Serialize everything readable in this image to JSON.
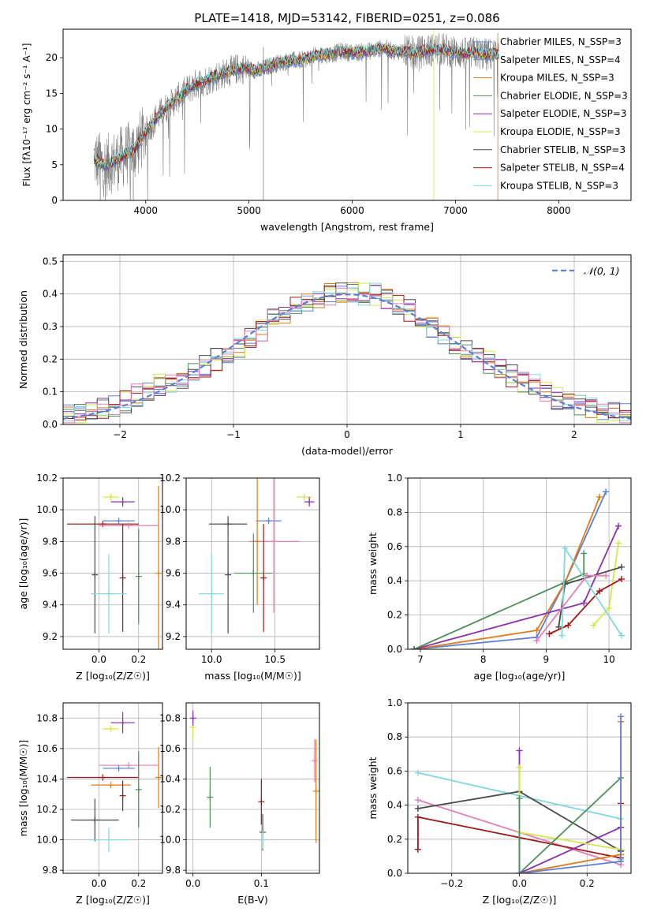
{
  "colors": {
    "chabrier_miles": "#5B7FD6",
    "salpeter_miles": "#6A8FD0",
    "kroupa_miles": "#E07B1C",
    "chabrier_elodie": "#4E8F5A",
    "salpeter_elodie": "#8E2FB0",
    "kroupa_elodie": "#D4E84A",
    "chabrier_stelib": "#4A4A4A",
    "salpeter_stelib": "#A01818",
    "kroupa_stelib": "#80D8DC",
    "pink": "#E57FB8",
    "gauss": "#5B7FD6",
    "grid": "#b0b0b0"
  },
  "chart_data": [
    {
      "type": "line",
      "title": "PLATE=1418, MJD=53142, FIBERID=0251, z=0.086",
      "xlabel": "wavelength [Angstrom, rest frame]",
      "ylabel": "Flux [fλ10⁻¹⁷ erg cm⁻² s⁻¹ A⁻¹]",
      "xlim": [
        3200,
        8700
      ],
      "ylim": [
        0,
        24
      ],
      "xticks": [
        "4000",
        "5000",
        "6000",
        "7000",
        "8000"
      ],
      "yticks": [
        "0",
        "5",
        "10",
        "15",
        "20"
      ],
      "legend_placement": "upper right",
      "legend": [
        "Chabrier MILES, N_SSP=3",
        "Salpeter MILES, N_SSP=4",
        "Kroupa MILES, N_SSP=3",
        "Chabrier ELODIE, N_SSP=3",
        "Salpeter ELODIE, N_SSP=3",
        "Kroupa ELODIE, N_SSP=3",
        "Chabrier STELIB, N_SSP=3",
        "Salpeter STELIB, N_SSP=4",
        "Kroupa STELIB, N_SSP=3"
      ],
      "continuum": {
        "x": [
          3500,
          3600,
          3700,
          3800,
          3900,
          4000,
          4100,
          4200,
          4300,
          4400,
          4500,
          4600,
          4700,
          4800,
          4900,
          5000,
          5100,
          5200,
          5300,
          5400,
          5500,
          5600,
          5700,
          5800,
          5900,
          6000,
          6100,
          6200,
          6300,
          6400,
          6500,
          6600,
          6700,
          6800,
          6900,
          7000,
          7100,
          7200,
          7300,
          7400
        ],
        "y": [
          5.8,
          4.8,
          5.5,
          6.3,
          7.2,
          9.5,
          11.5,
          13.0,
          14.2,
          15.5,
          16.4,
          16.9,
          17.5,
          18.0,
          18.5,
          18.4,
          18.2,
          18.9,
          19.3,
          19.6,
          19.6,
          20.1,
          20.4,
          20.5,
          20.9,
          20.7,
          20.8,
          21.0,
          21.4,
          20.9,
          20.9,
          20.6,
          20.9,
          21.2,
          21.1,
          20.8,
          20.5,
          20.7,
          20.4,
          20.5
        ]
      }
    },
    {
      "type": "step",
      "xlabel": "(data-model)/error",
      "ylabel": "Normed distribution",
      "xlim": [
        -2.5,
        2.5
      ],
      "ylim": [
        0,
        0.52
      ],
      "xticks": [
        "−2",
        "−1",
        "0",
        "1",
        "2"
      ],
      "yticks": [
        "0.0",
        "0.1",
        "0.2",
        "0.3",
        "0.4",
        "0.5"
      ],
      "legend": [
        "𝒩(0, 1)"
      ],
      "bin_width": 0.1,
      "histogram": [
        0.03,
        0.03,
        0.04,
        0.05,
        0.06,
        0.07,
        0.09,
        0.1,
        0.12,
        0.13,
        0.14,
        0.16,
        0.18,
        0.2,
        0.22,
        0.24,
        0.27,
        0.29,
        0.32,
        0.34,
        0.36,
        0.38,
        0.39,
        0.4,
        0.4,
        0.41,
        0.4,
        0.4,
        0.38,
        0.37,
        0.35,
        0.33,
        0.3,
        0.28,
        0.25,
        0.23,
        0.21,
        0.19,
        0.17,
        0.15,
        0.13,
        0.12,
        0.1,
        0.08,
        0.07,
        0.06,
        0.05,
        0.04,
        0.04,
        0.03
      ]
    },
    {
      "type": "scatter",
      "xlabel": "Z [log₁₀(Z/Z☉)]",
      "ylabel": "age  [log₁₀(age/yr)]",
      "xlim": [
        -0.18,
        0.32
      ],
      "ylim": [
        9.12,
        10.2
      ],
      "xticks": [
        "0.0",
        "0.2"
      ],
      "yticks": [
        "9.2",
        "9.4",
        "9.6",
        "9.8",
        "10.0",
        "10.2"
      ],
      "points": [
        {
          "x": 0.3,
          "y": 9.6,
          "xerr": 0.0,
          "yerr": 0.55,
          "c": "kroupa_miles"
        },
        {
          "x": 0.06,
          "y": 10.08,
          "xerr": 0.04,
          "yerr": 0.02,
          "c": "kroupa_elodie"
        },
        {
          "x": 0.12,
          "y": 10.05,
          "xerr": 0.06,
          "yerr": 0.03,
          "c": "salpeter_elodie"
        },
        {
          "x": 0.02,
          "y": 9.91,
          "xerr": 0.18,
          "yerr": 0.0,
          "c": "salpeter_stelib"
        },
        {
          "x": 0.1,
          "y": 9.93,
          "xerr": 0.08,
          "yerr": 0.0,
          "c": "chabrier_miles"
        },
        {
          "x": 0.15,
          "y": 9.9,
          "xerr": 0.15,
          "yerr": 0.0,
          "c": "pink"
        },
        {
          "x": -0.02,
          "y": 9.59,
          "xerr": 0.0,
          "yerr": 0.37,
          "c": "chabrier_stelib"
        },
        {
          "x": 0.12,
          "y": 9.57,
          "xerr": 0.0,
          "yerr": 0.34,
          "c": "salpeter_stelib"
        },
        {
          "x": 0.2,
          "y": 9.58,
          "xerr": 0.0,
          "yerr": 0.3,
          "c": "chabrier_elodie"
        },
        {
          "x": 0.05,
          "y": 9.47,
          "xerr": 0.09,
          "yerr": 0.25,
          "c": "kroupa_stelib"
        }
      ]
    },
    {
      "type": "scatter",
      "xlabel": "mass [log₁₀(M/M☉)]",
      "ylabel": "",
      "xlim": [
        9.8,
        10.85
      ],
      "ylim": [
        9.12,
        10.2
      ],
      "xticks": [
        "10.0",
        "10.5"
      ],
      "yticks": [
        "9.2",
        "9.4",
        "9.6",
        "9.8",
        "10.0",
        "10.2"
      ],
      "points": [
        {
          "x": 10.73,
          "y": 10.08,
          "xerr": 0.06,
          "yerr": 0.02,
          "c": "kroupa_elodie"
        },
        {
          "x": 10.77,
          "y": 10.05,
          "xerr": 0.04,
          "yerr": 0.03,
          "c": "salpeter_elodie"
        },
        {
          "x": 10.13,
          "y": 9.91,
          "xerr": 0.15,
          "yerr": 0.0,
          "c": "chabrier_stelib"
        },
        {
          "x": 10.45,
          "y": 9.93,
          "xerr": 0.1,
          "yerr": 0.0,
          "c": "chabrier_miles"
        },
        {
          "x": 10.49,
          "y": 9.8,
          "xerr": 0.2,
          "yerr": 0.45,
          "c": "pink"
        },
        {
          "x": 10.36,
          "y": 9.8,
          "xerr": 0.0,
          "yerr": 0.4,
          "c": "kroupa_miles"
        },
        {
          "x": 10.33,
          "y": 9.6,
          "xerr": 0.15,
          "yerr": 0.25,
          "c": "chabrier_elodie"
        },
        {
          "x": 10.13,
          "y": 9.59,
          "xerr": 0.0,
          "yerr": 0.37,
          "c": "chabrier_stelib"
        },
        {
          "x": 10.41,
          "y": 9.57,
          "xerr": 0.0,
          "yerr": 0.34,
          "c": "salpeter_stelib"
        },
        {
          "x": 10.0,
          "y": 9.47,
          "xerr": 0.1,
          "yerr": 0.25,
          "c": "kroupa_stelib"
        }
      ]
    },
    {
      "type": "line",
      "xlabel": "age  [log₁₀(age/yr)]",
      "ylabel": "mass weight",
      "xlim": [
        6.8,
        10.35
      ],
      "ylim": [
        0,
        1
      ],
      "xticks": [
        "7",
        "8",
        "9",
        "10"
      ],
      "yticks": [
        "0.0",
        "0.2",
        "0.4",
        "0.6",
        "0.8",
        "1.0"
      ],
      "series": [
        {
          "c": "chabrier_miles",
          "x": [
            6.9,
            8.85,
            9.3,
            9.95
          ],
          "y": [
            0.0,
            0.07,
            0.39,
            0.92
          ]
        },
        {
          "c": "kroupa_miles",
          "x": [
            6.9,
            8.85,
            9.3,
            9.85
          ],
          "y": [
            0.0,
            0.11,
            0.39,
            0.89
          ]
        },
        {
          "c": "salpeter_elodie",
          "x": [
            6.9,
            9.6,
            10.15
          ],
          "y": [
            0.0,
            0.27,
            0.72
          ]
        },
        {
          "c": "kroupa_elodie",
          "x": [
            9.75,
            10.0,
            10.15
          ],
          "y": [
            0.14,
            0.24,
            0.62
          ]
        },
        {
          "c": "chabrier_elodie",
          "x": [
            6.9,
            9.6,
            9.6
          ],
          "y": [
            0.0,
            0.44,
            0.56
          ]
        },
        {
          "c": "chabrier_stelib",
          "x": [
            9.2,
            9.3,
            10.2
          ],
          "y": [
            0.13,
            0.38,
            0.48
          ]
        },
        {
          "c": "salpeter_stelib",
          "x": [
            9.05,
            9.35,
            9.85,
            10.2
          ],
          "y": [
            0.09,
            0.14,
            0.34,
            0.41
          ]
        },
        {
          "c": "kroupa_stelib",
          "x": [
            9.25,
            9.3,
            10.2
          ],
          "y": [
            0.08,
            0.59,
            0.08
          ]
        },
        {
          "c": "pink",
          "x": [
            8.85,
            9.65,
            9.95
          ],
          "y": [
            0.05,
            0.43,
            0.43
          ]
        }
      ]
    },
    {
      "type": "scatter",
      "xlabel": "Z [log₁₀(Z/Z☉)]",
      "ylabel": "mass [log₁₀(M/M☉)]",
      "xlim": [
        -0.18,
        0.32
      ],
      "ylim": [
        9.78,
        10.9
      ],
      "xticks": [
        "0.0",
        "0.2"
      ],
      "yticks": [
        "9.8",
        "10.0",
        "10.2",
        "10.4",
        "10.6",
        "10.8"
      ],
      "points": [
        {
          "x": 0.12,
          "y": 10.77,
          "xerr": 0.06,
          "yerr": 0.07,
          "c": "salpeter_elodie"
        },
        {
          "x": 0.06,
          "y": 10.73,
          "xerr": 0.04,
          "yerr": 0.0,
          "c": "kroupa_elodie"
        },
        {
          "x": 0.3,
          "y": 10.41,
          "xerr": 0.0,
          "yerr": 0.2,
          "c": "kroupa_miles"
        },
        {
          "x": 0.15,
          "y": 10.49,
          "xerr": 0.15,
          "yerr": 0.0,
          "c": "pink"
        },
        {
          "x": 0.1,
          "y": 10.47,
          "xerr": 0.08,
          "yerr": 0.0,
          "c": "chabrier_miles"
        },
        {
          "x": 0.02,
          "y": 10.41,
          "xerr": 0.18,
          "yerr": 0.0,
          "c": "salpeter_stelib"
        },
        {
          "x": 0.06,
          "y": 10.36,
          "xerr": 0.1,
          "yerr": 0.0,
          "c": "kroupa_miles"
        },
        {
          "x": 0.2,
          "y": 10.33,
          "xerr": 0.0,
          "yerr": 0.25,
          "c": "chabrier_elodie"
        },
        {
          "x": 0.12,
          "y": 10.29,
          "xerr": 0.0,
          "yerr": 0.1,
          "c": "salpeter_stelib"
        },
        {
          "x": -0.02,
          "y": 10.13,
          "xerr": 0.12,
          "yerr": 0.14,
          "c": "chabrier_stelib"
        },
        {
          "x": 0.05,
          "y": 10.0,
          "xerr": 0.1,
          "yerr": 0.08,
          "c": "kroupa_stelib"
        }
      ]
    },
    {
      "type": "scatter",
      "xlabel": "E(B-V)",
      "ylabel": "",
      "xlim": [
        -0.01,
        0.185
      ],
      "ylim": [
        9.78,
        10.9
      ],
      "xticks": [
        "0.0",
        "0.1"
      ],
      "yticks": [
        "9.8",
        "10.0",
        "10.2",
        "10.4",
        "10.6",
        "10.8"
      ],
      "points": [
        {
          "x": 0.0,
          "y": 10.74,
          "xerr": 0.0,
          "yerr": 0.08,
          "c": "kroupa_elodie"
        },
        {
          "x": 0.0,
          "y": 10.8,
          "xerr": 0.0,
          "yerr": 0.05,
          "c": "salpeter_elodie"
        },
        {
          "x": 0.025,
          "y": 10.28,
          "xerr": 0.0,
          "yerr": 0.2,
          "c": "chabrier_elodie"
        },
        {
          "x": 0.1,
          "y": 10.25,
          "xerr": 0.0,
          "yerr": 0.15,
          "c": "salpeter_stelib"
        },
        {
          "x": 0.102,
          "y": 10.05,
          "xerr": 0.0,
          "yerr": 0.12,
          "c": "chabrier_stelib"
        },
        {
          "x": 0.102,
          "y": 10.0,
          "xerr": 0.0,
          "yerr": 0.06,
          "c": "kroupa_stelib"
        },
        {
          "x": 0.18,
          "y": 10.32,
          "xerr": 0.0,
          "yerr": 0.34,
          "c": "kroupa_miles"
        },
        {
          "x": 0.178,
          "y": 10.52,
          "xerr": 0.0,
          "yerr": 0.14,
          "c": "pink"
        }
      ]
    },
    {
      "type": "line",
      "xlabel": "Z [log₁₀(Z/Z☉)]",
      "ylabel": "mass weight",
      "xlim": [
        -0.33,
        0.33
      ],
      "ylim": [
        0,
        1
      ],
      "xticks": [
        "−0.2",
        "0.0",
        "0.2"
      ],
      "yticks": [
        "0.0",
        "0.2",
        "0.4",
        "0.6",
        "0.8",
        "1.0"
      ],
      "series": [
        {
          "c": "kroupa_stelib",
          "x": [
            -0.3,
            0.3,
            0.3
          ],
          "y": [
            0.59,
            0.32,
            0.08
          ]
        },
        {
          "c": "pink",
          "x": [
            -0.3,
            0.3
          ],
          "y": [
            0.43,
            0.05
          ]
        },
        {
          "c": "chabrier_stelib",
          "x": [
            -0.3,
            0.0,
            0.3,
            0.3
          ],
          "y": [
            0.38,
            0.48,
            0.13,
            0.13
          ]
        },
        {
          "c": "salpeter_stelib",
          "x": [
            -0.3,
            -0.3,
            0.3,
            0.3
          ],
          "y": [
            0.14,
            0.33,
            0.09,
            0.41
          ]
        },
        {
          "c": "salpeter_elodie",
          "x": [
            0.0,
            0.0,
            0.3,
            0.3
          ],
          "y": [
            0.72,
            0.0,
            0.27,
            0.27
          ]
        },
        {
          "c": "kroupa_elodie",
          "x": [
            0.0,
            0.0,
            0.3
          ],
          "y": [
            0.62,
            0.24,
            0.14
          ]
        },
        {
          "c": "chabrier_elodie",
          "x": [
            0.0,
            0.0,
            0.3
          ],
          "y": [
            0.44,
            0.0,
            0.56
          ]
        },
        {
          "c": "kroupa_miles",
          "x": [
            0.0,
            0.3,
            0.3
          ],
          "y": [
            0.0,
            0.11,
            0.89
          ]
        },
        {
          "c": "chabrier_miles",
          "x": [
            0.0,
            0.3,
            0.3
          ],
          "y": [
            0.0,
            0.07,
            0.92
          ]
        }
      ]
    }
  ]
}
